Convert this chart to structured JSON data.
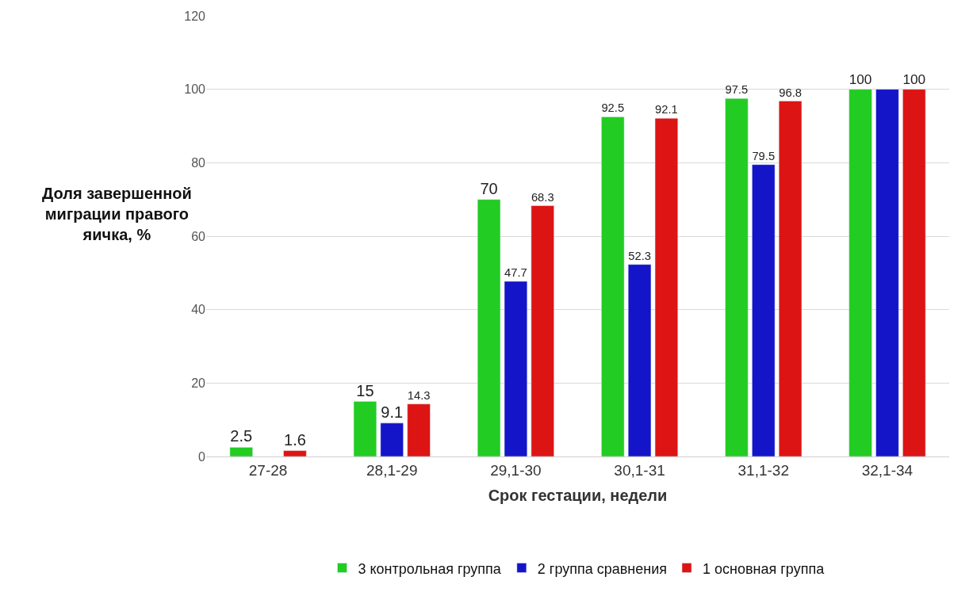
{
  "chart_data": {
    "type": "bar",
    "xlabel": "Срок гестации, недели",
    "ylabel": "Доля завершенной миграции правого яичка, %",
    "categories": [
      "27-28",
      "28,1-29",
      "29,1-30",
      "30,1-31",
      "31,1-32",
      "32,1-34"
    ],
    "series": [
      {
        "name": "3 контрольная группа",
        "color": "#22cc22",
        "values": [
          2.5,
          15,
          70,
          92.5,
          97.5,
          100
        ],
        "value_labels": [
          "2.5",
          "15",
          "70",
          "92.5",
          "97.5",
          "100"
        ]
      },
      {
        "name": "2 группа сравнения",
        "color": "#1414c8",
        "values": [
          null,
          9.1,
          47.7,
          52.3,
          79.5,
          100
        ],
        "value_labels": [
          null,
          "9.1",
          "47.7",
          "52.3",
          "79.5",
          null
        ]
      },
      {
        "name": "1 основная группа",
        "color": "#dd1414",
        "values": [
          1.6,
          14.3,
          68.3,
          92.1,
          96.8,
          100
        ],
        "value_labels": [
          "1.6",
          "14.3",
          "68.3",
          "92.1",
          "96.8",
          "100"
        ]
      }
    ],
    "ylim": [
      0,
      120
    ],
    "yticks": [
      0,
      20,
      40,
      60,
      80,
      100,
      120
    ],
    "grid": "y",
    "legend": "bottom"
  }
}
